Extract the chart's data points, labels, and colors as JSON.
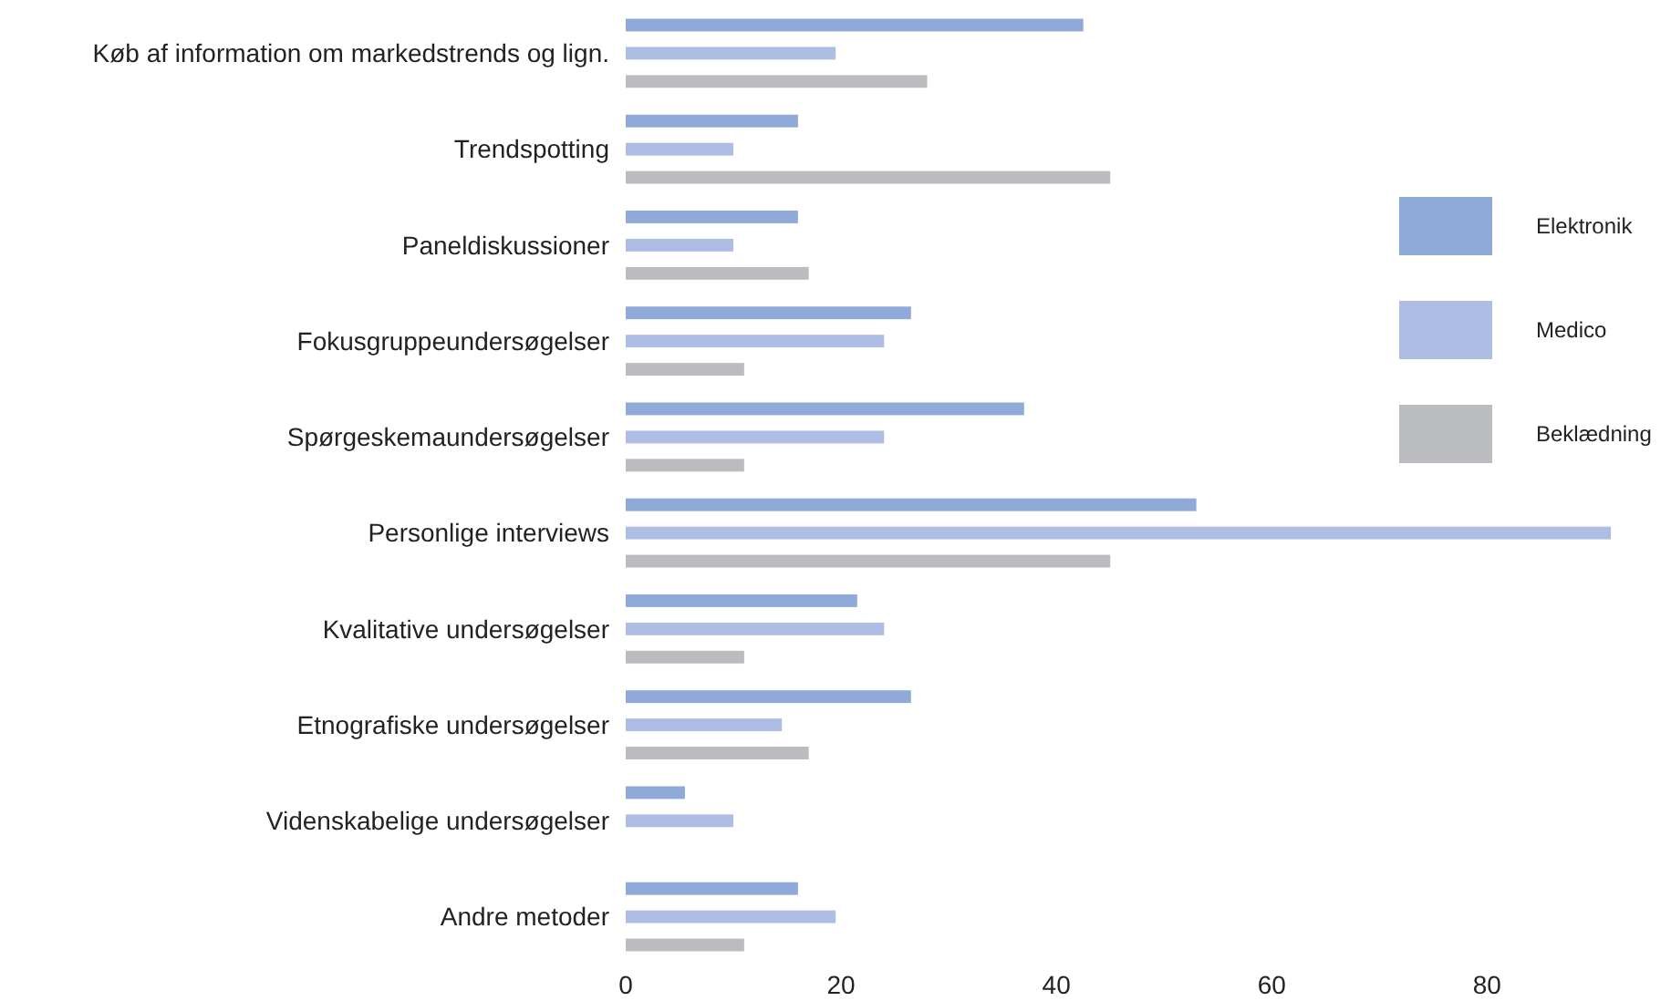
{
  "chart_data": {
    "type": "bar",
    "orientation": "horizontal",
    "categories": [
      "Køb af information om markedstrends og lign.",
      "Trendspotting",
      "Paneldiskussioner",
      "Fokusgruppeundersøgelser",
      "Spørgeskemaundersøgelser",
      "Personlige interviews",
      "Kvalitative undersøgelser",
      "Etnografiske undersøgelser",
      "Videnskabelige undersøgelser",
      "Andre metoder"
    ],
    "series": [
      {
        "name": "Elektronik",
        "color": "#8faad8",
        "values": [
          42.5,
          16,
          16,
          26.5,
          37,
          53,
          21.5,
          26.5,
          5.5,
          16
        ]
      },
      {
        "name": "Medico",
        "color": "#adbde3",
        "values": [
          19.5,
          10,
          10,
          24,
          24,
          91.5,
          24,
          14.5,
          10,
          19.5
        ]
      },
      {
        "name": "Beklædning",
        "color": "#bbbcc0",
        "values": [
          28,
          45,
          17,
          11,
          11,
          45,
          11,
          17,
          null,
          11
        ]
      }
    ],
    "xlim": [
      0,
      92
    ],
    "xticks": [
      0,
      20,
      40,
      60,
      80
    ],
    "grid": false,
    "legend": "right"
  }
}
